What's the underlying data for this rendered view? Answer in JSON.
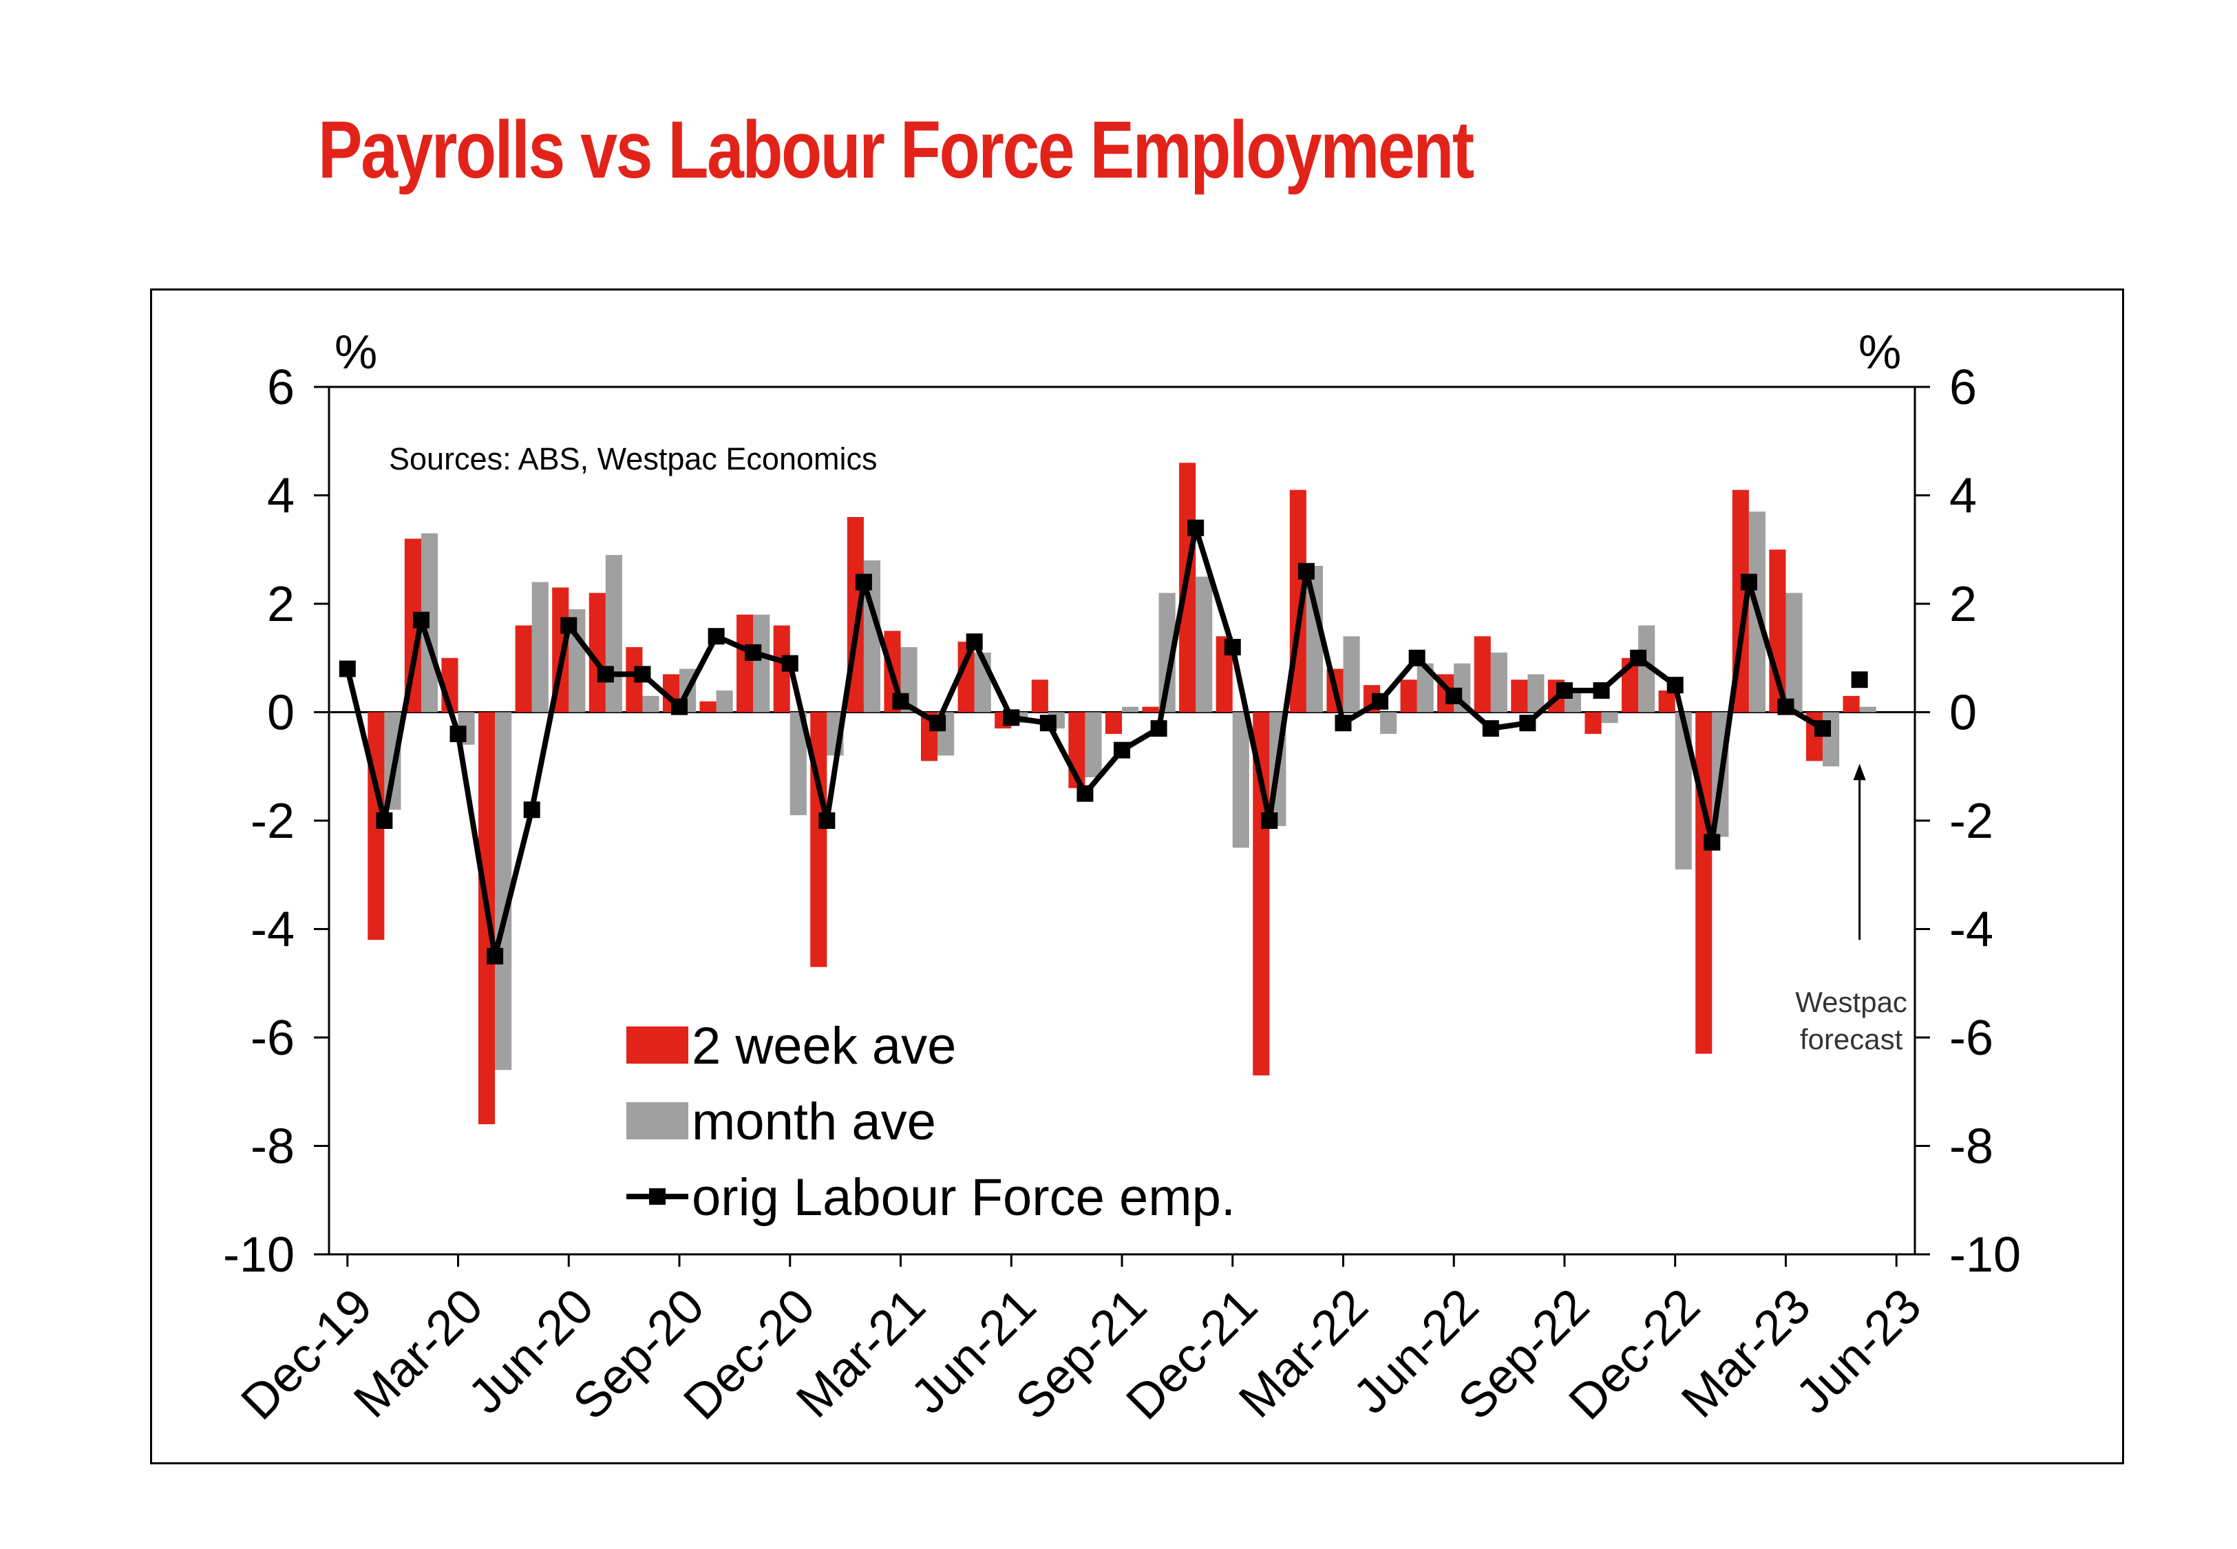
{
  "title": "Payrolls vs Labour Force Employment",
  "chart_data": {
    "type": "bar",
    "title": "Payrolls vs Labour Force Employment",
    "source": "Sources: ABS, Westpac Economics",
    "y_unit_left": "%",
    "y_unit_right": "%",
    "ylim": [
      -10,
      6
    ],
    "yticks": [
      6,
      4,
      2,
      0,
      -2,
      -4,
      -6,
      -8,
      -10
    ],
    "x_tick_labels": [
      "Dec-19",
      "Mar-20",
      "Jun-20",
      "Sep-20",
      "Dec-20",
      "Mar-21",
      "Jun-21",
      "Sep-21",
      "Dec-21",
      "Mar-22",
      "Jun-22",
      "Sep-22",
      "Dec-22",
      "Mar-23",
      "Jun-23"
    ],
    "grid": false,
    "legend_position": "bottom-left",
    "colors": {
      "two_week": "#e2231a",
      "month": "#a0a0a0",
      "line": "#000000"
    },
    "x": [
      "Dec-19",
      "Jan-20",
      "Feb-20",
      "Mar-20",
      "Apr-20",
      "May-20",
      "Jun-20",
      "Jul-20",
      "Aug-20",
      "Sep-20",
      "Oct-20",
      "Nov-20",
      "Dec-20",
      "Jan-21",
      "Feb-21",
      "Mar-21",
      "Apr-21",
      "May-21",
      "Jun-21",
      "Jul-21",
      "Aug-21",
      "Sep-21",
      "Oct-21",
      "Nov-21",
      "Dec-21",
      "Jan-22",
      "Feb-22",
      "Mar-22",
      "Apr-22",
      "May-22",
      "Jun-22",
      "Jul-22",
      "Aug-22",
      "Sep-22",
      "Oct-22",
      "Nov-22",
      "Dec-22",
      "Jan-23",
      "Feb-23",
      "Mar-23",
      "Apr-23",
      "May-23",
      "Jun-23"
    ],
    "series": [
      {
        "name": "2 week ave",
        "kind": "bar",
        "values": [
          null,
          -4.2,
          3.2,
          1.0,
          -7.6,
          1.6,
          2.3,
          2.2,
          1.2,
          0.7,
          0.2,
          1.8,
          1.6,
          -4.7,
          3.6,
          1.5,
          -0.9,
          1.3,
          -0.3,
          0.6,
          -1.4,
          -0.4,
          0.1,
          4.6,
          1.4,
          -6.7,
          4.1,
          0.8,
          0.5,
          0.6,
          0.7,
          1.4,
          0.6,
          0.6,
          -0.4,
          1.0,
          0.4,
          -6.3,
          4.1,
          3.0,
          -0.9,
          0.3,
          null
        ]
      },
      {
        "name": "month ave",
        "kind": "bar",
        "values": [
          null,
          -1.8,
          3.3,
          -0.6,
          -6.6,
          2.4,
          1.9,
          2.9,
          0.3,
          0.8,
          0.4,
          1.8,
          -1.9,
          -0.8,
          2.8,
          1.2,
          -0.8,
          1.1,
          -0.2,
          -0.3,
          -1.2,
          0.1,
          2.2,
          2.5,
          -2.5,
          -2.1,
          2.7,
          1.4,
          -0.4,
          0.9,
          0.9,
          1.1,
          0.7,
          0.4,
          -0.2,
          1.6,
          -2.9,
          -2.3,
          3.7,
          2.2,
          -1.0,
          0.1,
          null
        ]
      },
      {
        "name": "orig Labour Force emp.",
        "kind": "line",
        "values": [
          0.8,
          -2.0,
          1.7,
          -0.4,
          -4.5,
          -1.8,
          1.6,
          0.7,
          0.7,
          0.1,
          1.4,
          1.1,
          0.9,
          -2.0,
          2.4,
          0.2,
          -0.2,
          1.3,
          -0.1,
          -0.2,
          -1.5,
          -0.7,
          -0.3,
          3.4,
          1.2,
          -2.0,
          2.6,
          -0.2,
          0.2,
          1.0,
          0.3,
          -0.3,
          -0.2,
          0.4,
          0.4,
          1.0,
          0.5,
          -2.4,
          2.4,
          0.1,
          -0.3,
          null,
          null
        ]
      },
      {
        "name": "Westpac forecast",
        "kind": "marker",
        "values": [
          null,
          null,
          null,
          null,
          null,
          null,
          null,
          null,
          null,
          null,
          null,
          null,
          null,
          null,
          null,
          null,
          null,
          null,
          null,
          null,
          null,
          null,
          null,
          null,
          null,
          null,
          null,
          null,
          null,
          null,
          null,
          null,
          null,
          null,
          null,
          null,
          null,
          null,
          null,
          null,
          null,
          0.6,
          null
        ]
      }
    ],
    "annotation": {
      "line1": "Westpac",
      "line2": "forecast"
    },
    "legend": [
      {
        "key": "two_week",
        "label": "2 week ave"
      },
      {
        "key": "month",
        "label": "month ave"
      },
      {
        "key": "line",
        "label": "orig Labour Force emp."
      }
    ]
  }
}
